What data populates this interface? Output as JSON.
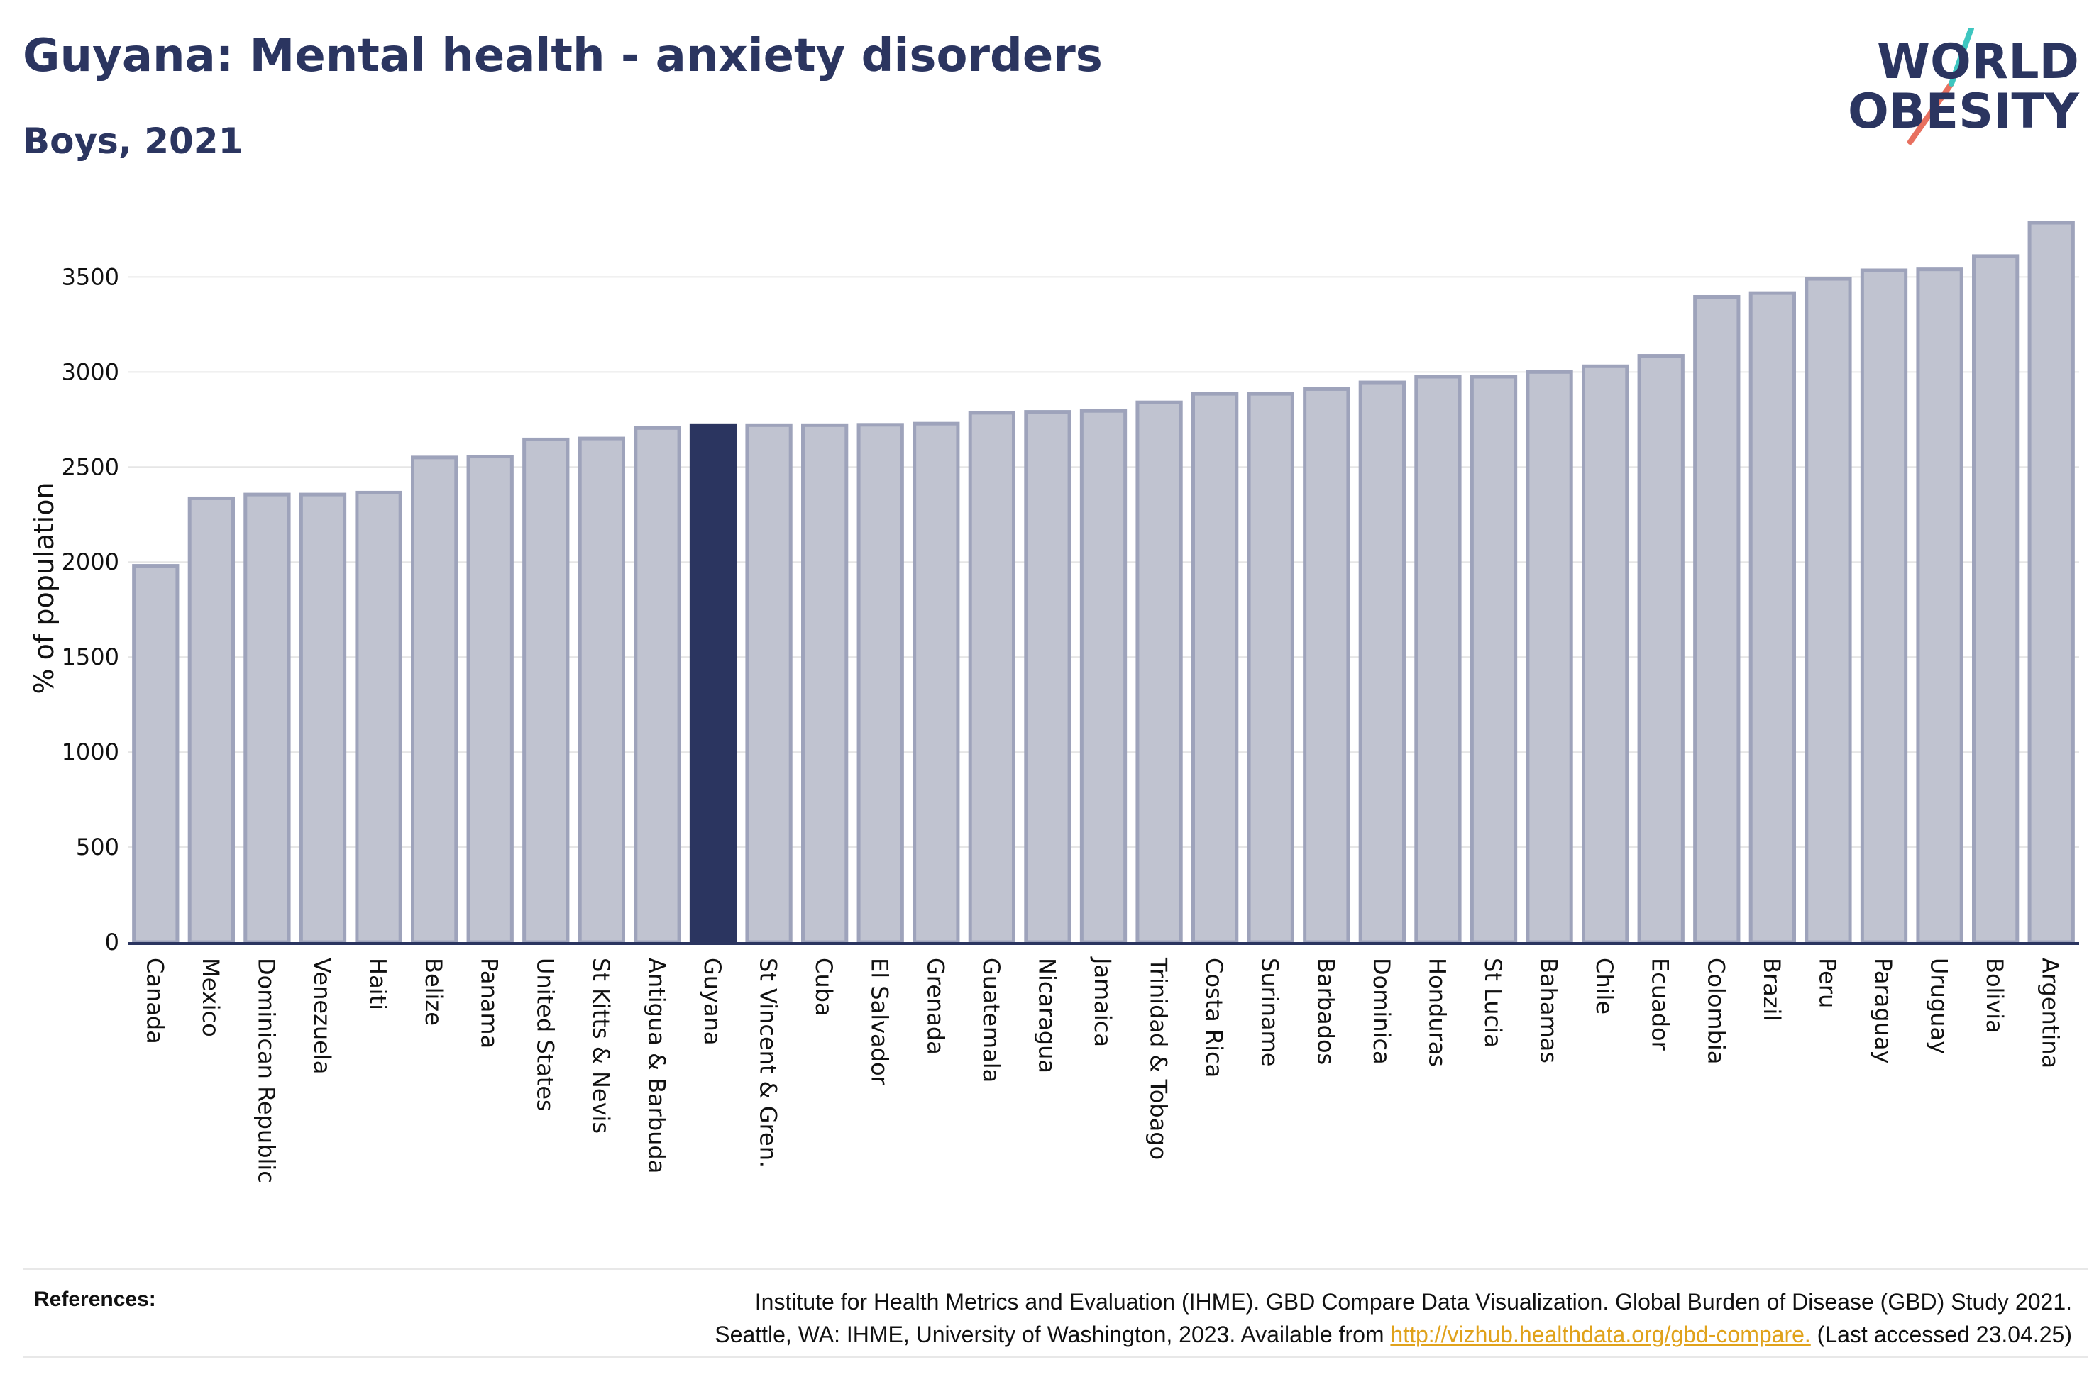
{
  "header": {
    "title": "Guyana: Mental health - anxiety disorders",
    "subtitle": "Boys, 2021"
  },
  "logo": {
    "line1": "WORLD",
    "line2": "OBESITY"
  },
  "colors": {
    "highlight_bar": "#2b3560",
    "bar_fill": "#c0c3d0",
    "bar_edge": "#9ea3bb",
    "text": "#2b3560",
    "link": "#e0a21b",
    "logo_teal": "#3ec6c0",
    "logo_coral": "#e8705f"
  },
  "chart_data": {
    "type": "bar",
    "ylabel": "% of population",
    "xlabel": "",
    "ylim": [
      0,
      3800
    ],
    "yticks": [
      0,
      500,
      1000,
      1500,
      2000,
      2500,
      3000,
      3500
    ],
    "grid": true,
    "highlight": "Guyana",
    "categories": [
      "Canada",
      "Mexico",
      "Dominican Republic",
      "Venezuela",
      "Haiti",
      "Belize",
      "Panama",
      "United States",
      "St Kitts & Nevis",
      "Antigua & Barbuda",
      "Guyana",
      "St Vincent & Gren.",
      "Cuba",
      "El Salvador",
      "Grenada",
      "Guatemala",
      "Nicaragua",
      "Jamaica",
      "Trinidad & Tobago",
      "Costa Rica",
      "Suriname",
      "Barbados",
      "Dominica",
      "Honduras",
      "St Lucia",
      "Bahamas",
      "Chile",
      "Ecuador",
      "Colombia",
      "Brazil",
      "Peru",
      "Paraguay",
      "Uruguay",
      "Bolivia",
      "Argentina"
    ],
    "values": [
      1980,
      2335,
      2355,
      2355,
      2365,
      2550,
      2555,
      2645,
      2650,
      2705,
      2720,
      2720,
      2720,
      2722,
      2728,
      2785,
      2790,
      2795,
      2840,
      2885,
      2885,
      2910,
      2945,
      2975,
      2975,
      3000,
      3030,
      3085,
      3395,
      3415,
      3490,
      3535,
      3540,
      3610,
      3785
    ]
  },
  "references": {
    "label": "References:",
    "line1": "Institute for Health Metrics and Evaluation (IHME). GBD Compare Data Visualization. Global Burden of Disease (GBD) Study 2021.",
    "line2_prefix": "Seattle, WA: IHME, University of Washington, 2023. Available from ",
    "link": "http://vizhub.healthdata.org/gbd-compare.",
    "line2_suffix": " (Last accessed 23.04.25)"
  }
}
